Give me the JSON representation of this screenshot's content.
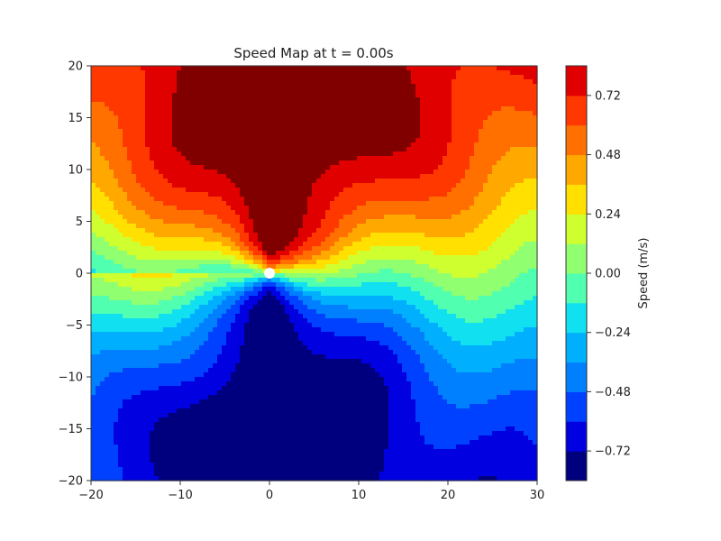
{
  "chart_data": {
    "type": "heatmap",
    "title": "Speed Map at t = 0.00s",
    "xlabel": "",
    "ylabel": "",
    "xlim": [
      -20,
      30
    ],
    "ylim": [
      -20,
      20
    ],
    "x_ticks": [
      -20,
      -10,
      0,
      10,
      20,
      30
    ],
    "x_tick_labels": [
      "−20",
      "−10",
      "0",
      "10",
      "20",
      "30"
    ],
    "y_ticks": [
      20,
      15,
      10,
      5,
      0,
      -5,
      -10,
      -15,
      -20
    ],
    "y_tick_labels": [
      "20",
      "15",
      "10",
      "5",
      "0",
      "−5",
      "−10",
      "−15",
      "−20"
    ],
    "colorbar": {
      "label": "Speed (m/s)",
      "range": [
        -0.84,
        0.84
      ],
      "levels": [
        -0.84,
        -0.72,
        -0.6,
        -0.48,
        -0.36,
        -0.24,
        -0.12,
        0.0,
        0.12,
        0.24,
        0.36,
        0.48,
        0.6,
        0.72,
        0.84
      ],
      "ticks": [
        0.72,
        0.48,
        0.24,
        0.0,
        -0.24,
        -0.48,
        -0.72
      ],
      "tick_labels": [
        "0.72",
        "0.48",
        "0.24",
        "0.00",
        "−0.24",
        "−0.48",
        "−0.72"
      ],
      "colors": [
        "#00007f",
        "#0000e0",
        "#0040ff",
        "#0080ff",
        "#00b0ff",
        "#10e0f0",
        "#50ffb0",
        "#90ff70",
        "#d0ff30",
        "#ffe000",
        "#ffa800",
        "#ff7000",
        "#ff3800",
        "#e00000",
        "#800000"
      ]
    },
    "source_marker": {
      "x": 0,
      "y": 0,
      "color": "#ffffff"
    },
    "colormap": "jet",
    "grid": false
  }
}
